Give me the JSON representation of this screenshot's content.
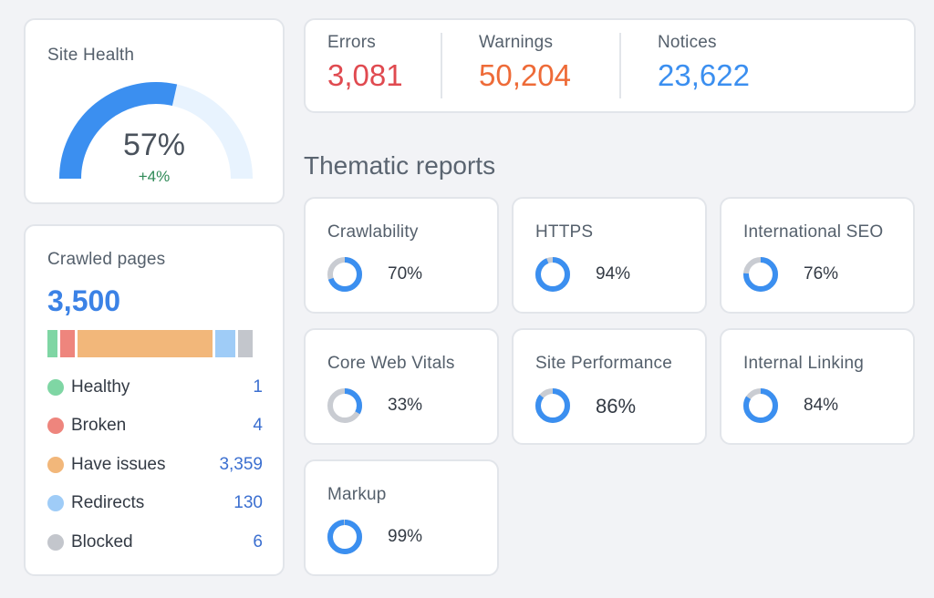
{
  "site_health": {
    "title": "Site Health",
    "value": "57%",
    "percent": 57,
    "delta": "+4%",
    "color": "#3b8ff0",
    "track_color": "#e8f3fe"
  },
  "crawled_pages": {
    "title": "Crawled pages",
    "total": "3,500",
    "segments": [
      {
        "name": "Healthy",
        "value": "1",
        "color": "#7fd6a4",
        "bar_share": 0.05
      },
      {
        "name": "Broken",
        "value": "4",
        "color": "#ee857d",
        "bar_share": 0.07
      },
      {
        "name": "Have issues",
        "value": "3,359",
        "color": "#f2b77a",
        "bar_share": 0.66
      },
      {
        "name": "Redirects",
        "value": "130",
        "color": "#9fccf7",
        "bar_share": 0.1
      },
      {
        "name": "Blocked",
        "value": "6",
        "color": "#c3c6cc",
        "bar_share": 0.07
      }
    ]
  },
  "issues": {
    "errors": {
      "label": "Errors",
      "value": "3,081",
      "color": "#e04a50"
    },
    "warnings": {
      "label": "Warnings",
      "value": "50,204",
      "color": "#ee6b38"
    },
    "notices": {
      "label": "Notices",
      "value": "23,622",
      "color": "#3b8ff0"
    }
  },
  "thematic": {
    "title": "Thematic reports",
    "ring_color": "#3b8ff0",
    "ring_track": "#c9ccd2",
    "reports": [
      {
        "name": "Crawlability",
        "value": "70%",
        "percent": 70
      },
      {
        "name": "HTTPS",
        "value": "94%",
        "percent": 94
      },
      {
        "name": "International SEO",
        "value": "76%",
        "percent": 76
      },
      {
        "name": "Core Web Vitals",
        "value": "33%",
        "percent": 33
      },
      {
        "name": "Site Performance",
        "value": "86%",
        "percent": 86
      },
      {
        "name": "Internal Linking",
        "value": "84%",
        "percent": 84
      },
      {
        "name": "Markup",
        "value": "99%",
        "percent": 99
      }
    ]
  }
}
